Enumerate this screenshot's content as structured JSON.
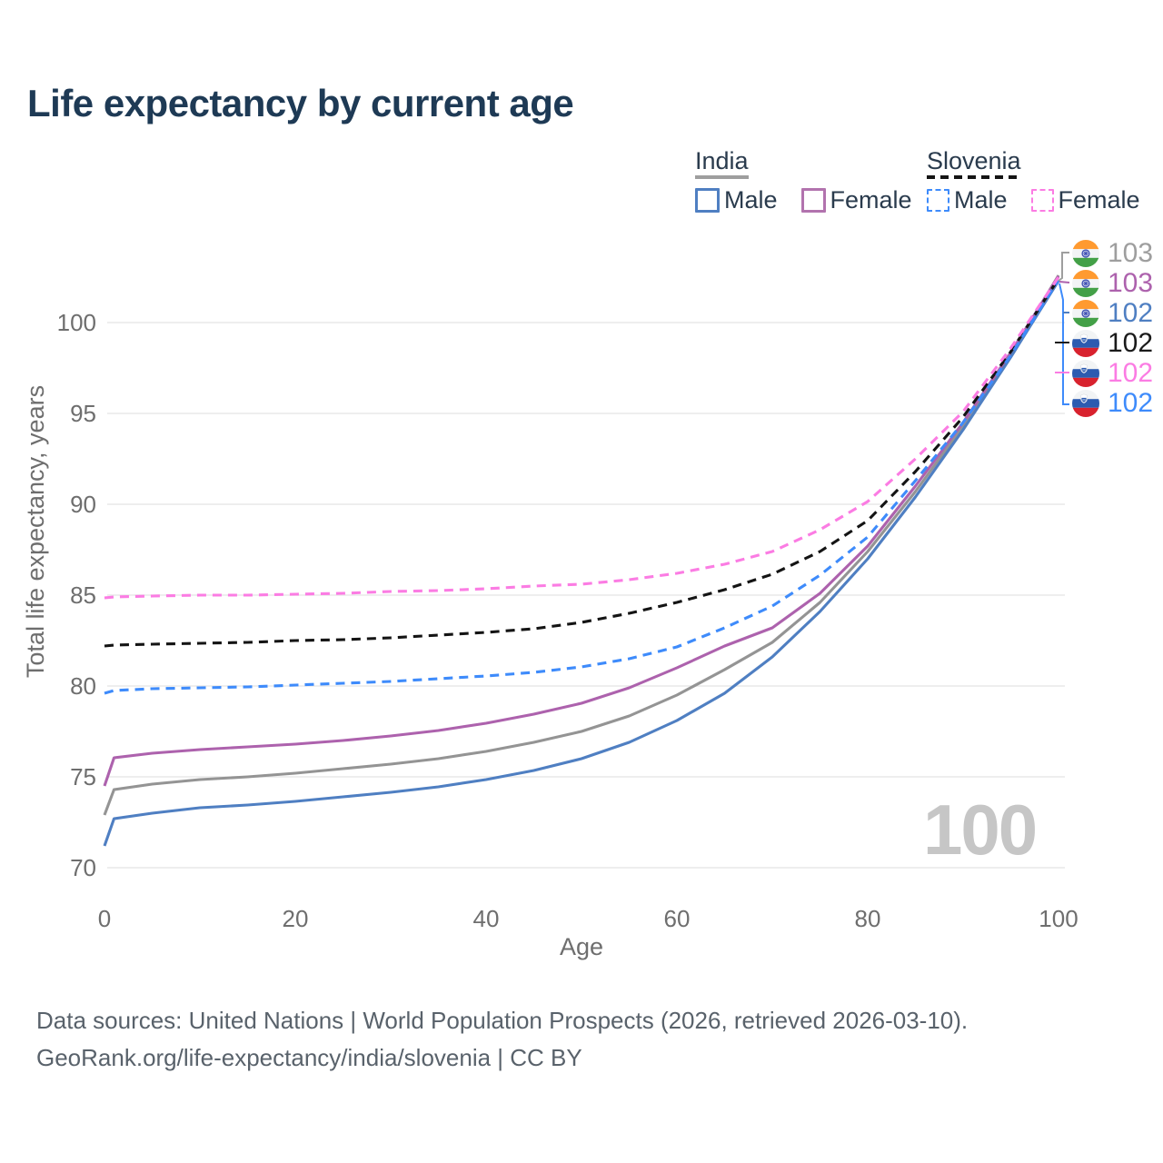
{
  "title": "Life expectancy by current age",
  "legend": {
    "groups": [
      {
        "label": "India",
        "underline_style": "solid",
        "underline_color": "#9e9e9e",
        "items": [
          {
            "label": "Male",
            "box_color": "#4f7fc2",
            "box_style": "solid"
          },
          {
            "label": "Female",
            "box_color": "#b273ae",
            "box_style": "solid"
          }
        ]
      },
      {
        "label": "Slovenia",
        "underline_style": "dashed",
        "underline_color": "#141414",
        "items": [
          {
            "label": "Male",
            "box_color": "#3e8bfb",
            "box_style": "dashed"
          },
          {
            "label": "Female",
            "box_color": "#fb7ce3",
            "box_style": "dashed"
          }
        ]
      }
    ]
  },
  "axes": {
    "y": {
      "title": "Total life expectancy, years",
      "ticks": [
        70,
        75,
        80,
        85,
        90,
        95,
        100
      ]
    },
    "x": {
      "title": "Age",
      "ticks": [
        0,
        20,
        40,
        60,
        80,
        100
      ]
    }
  },
  "end_labels": [
    {
      "flag": "india",
      "value": "103",
      "color": "#9e9e9e"
    },
    {
      "flag": "india",
      "value": "103",
      "color": "#ad62ad"
    },
    {
      "flag": "india",
      "value": "102",
      "color": "#4f7fc2"
    },
    {
      "flag": "slovenia",
      "value": "102",
      "color": "#1a1a1a"
    },
    {
      "flag": "slovenia",
      "value": "102",
      "color": "#fb7ce3"
    },
    {
      "flag": "slovenia",
      "value": "102",
      "color": "#3e8bfb"
    }
  ],
  "watermark": "100",
  "footer": {
    "line1": "Data sources: United Nations | World Population Prospects (2026, retrieved 2026-03-10).",
    "line2": "GeoRank.org/life-expectancy/india/slovenia | CC BY"
  },
  "chart_data": {
    "type": "line",
    "title": "Life expectancy by current age",
    "xlabel": "Age",
    "ylabel": "Total life expectancy, years",
    "xlim": [
      0,
      100
    ],
    "ylim": [
      69,
      103.5
    ],
    "grid": "horizontal",
    "x": [
      0,
      1,
      5,
      10,
      15,
      20,
      25,
      30,
      35,
      40,
      45,
      50,
      55,
      60,
      65,
      70,
      75,
      80,
      85,
      90,
      95,
      100
    ],
    "series": [
      {
        "name": "India — Both sexes",
        "country": "India",
        "style": "solid",
        "color": "#949494",
        "end_label": 103,
        "values": [
          72.9,
          74.3,
          74.6,
          74.85,
          75.0,
          75.2,
          75.45,
          75.7,
          76.0,
          76.4,
          76.9,
          77.5,
          78.35,
          79.5,
          80.9,
          82.4,
          84.6,
          87.4,
          90.7,
          94.3,
          98.25,
          102.6
        ]
      },
      {
        "name": "India — Female",
        "country": "India",
        "style": "solid",
        "color": "#ad62ad",
        "end_label": 103,
        "values": [
          74.5,
          76.05,
          76.3,
          76.5,
          76.65,
          76.8,
          77.0,
          77.25,
          77.55,
          77.95,
          78.45,
          79.05,
          79.9,
          81.0,
          82.2,
          83.2,
          85.1,
          87.7,
          91.0,
          94.5,
          98.35,
          102.55
        ]
      },
      {
        "name": "India — Male",
        "country": "India",
        "style": "solid",
        "color": "#4f7fc2",
        "end_label": 102,
        "values": [
          71.2,
          72.7,
          73.0,
          73.3,
          73.45,
          73.65,
          73.9,
          74.15,
          74.45,
          74.85,
          75.35,
          76.0,
          76.9,
          78.1,
          79.6,
          81.6,
          84.1,
          87.0,
          90.4,
          94.1,
          98.1,
          102.3
        ]
      },
      {
        "name": "Slovenia — Both sexes",
        "country": "Slovenia",
        "style": "dashed",
        "color": "#141414",
        "end_label": 102,
        "values": [
          82.2,
          82.25,
          82.3,
          82.35,
          82.4,
          82.5,
          82.55,
          82.65,
          82.8,
          82.95,
          83.15,
          83.5,
          84.0,
          84.6,
          85.3,
          86.15,
          87.4,
          89.1,
          91.8,
          94.8,
          98.4,
          102.42
        ]
      },
      {
        "name": "Slovenia — Male",
        "country": "Slovenia",
        "style": "dashed",
        "color": "#3e8bfb",
        "end_label": 102,
        "values": [
          79.6,
          79.75,
          79.85,
          79.9,
          79.95,
          80.05,
          80.15,
          80.25,
          80.4,
          80.55,
          80.75,
          81.05,
          81.5,
          82.15,
          83.2,
          84.4,
          86.1,
          88.2,
          91.3,
          94.5,
          98.2,
          102.35
        ]
      },
      {
        "name": "Slovenia — Female",
        "country": "Slovenia",
        "style": "dashed",
        "color": "#fb7ce3",
        "end_label": 102,
        "values": [
          84.85,
          84.9,
          84.95,
          85.0,
          85.0,
          85.05,
          85.1,
          85.2,
          85.25,
          85.35,
          85.5,
          85.6,
          85.85,
          86.2,
          86.7,
          87.4,
          88.6,
          90.15,
          92.5,
          95.1,
          98.6,
          102.5
        ]
      }
    ]
  }
}
